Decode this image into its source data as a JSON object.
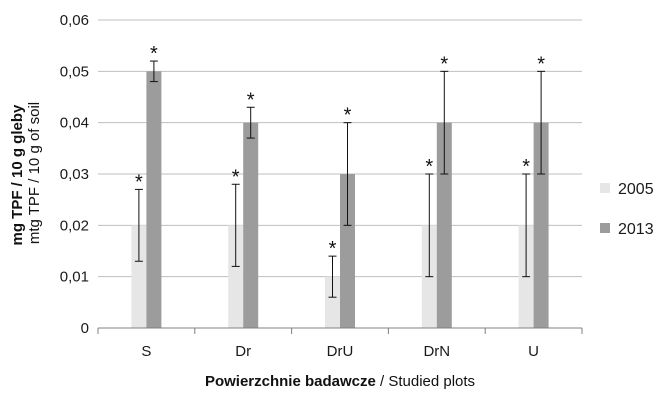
{
  "chart_data": {
    "type": "bar",
    "categories": [
      "S",
      "Dr",
      "DrU",
      "DrN",
      "U"
    ],
    "series": [
      {
        "name": "2005",
        "color": "#e6e6e6",
        "values": [
          0.02,
          0.02,
          0.01,
          0.02,
          0.02
        ],
        "error_low": [
          0.013,
          0.012,
          0.006,
          0.01,
          0.01
        ],
        "error_high": [
          0.027,
          0.028,
          0.014,
          0.03,
          0.03
        ],
        "annotations": [
          "*",
          "*",
          "*",
          "*",
          "*"
        ]
      },
      {
        "name": "2013",
        "color": "#9c9c9c",
        "values": [
          0.05,
          0.04,
          0.03,
          0.04,
          0.04
        ],
        "error_low": [
          0.048,
          0.037,
          0.02,
          0.03,
          0.03
        ],
        "error_high": [
          0.052,
          0.043,
          0.04,
          0.05,
          0.05
        ],
        "annotations": [
          "*",
          "*",
          "*",
          "*",
          "*"
        ]
      }
    ],
    "y_ticks": [
      "0",
      "0,01",
      "0,02",
      "0,03",
      "0,04",
      "0,05",
      "0,06"
    ],
    "ylim": [
      0,
      0.06
    ],
    "grid": true,
    "legend_position": "right",
    "ylabel_bold": "mg TPF / 10 g gleby",
    "ylabel_normal": "mtg TPF / 10 g of soil",
    "xlabel_bold": "Powierzchnie badawcze",
    "xlabel_normal": " / Studied plots",
    "colors": {
      "grid": "#bfbfbf",
      "axis": "#808080"
    }
  }
}
